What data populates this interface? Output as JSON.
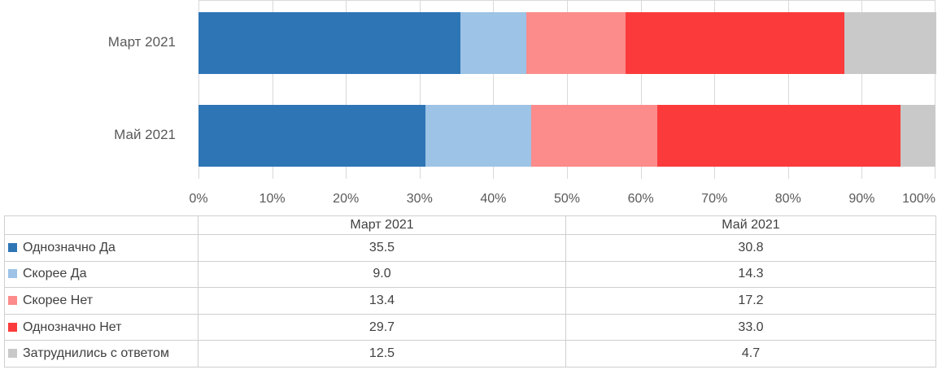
{
  "chart_data": {
    "type": "bar",
    "stacked": true,
    "orientation": "horizontal",
    "categories": [
      "Март 2021",
      "Май 2021"
    ],
    "series": [
      {
        "name": "Однозначно Да",
        "color": "#2E75B6",
        "values": [
          35.5,
          30.8
        ]
      },
      {
        "name": "Скорее Да",
        "color": "#9DC3E6",
        "values": [
          9.0,
          14.3
        ]
      },
      {
        "name": "Скорее Нет",
        "color": "#FC8B8B",
        "values": [
          13.4,
          17.2
        ]
      },
      {
        "name": "Однозначно Нет",
        "color": "#FB3B3B",
        "values": [
          29.7,
          33.0
        ]
      },
      {
        "name": "Затруднились с ответом",
        "color": "#C9C9C9",
        "values": [
          12.5,
          4.7
        ]
      }
    ],
    "x_axis": {
      "ticks": [
        "0%",
        "10%",
        "20%",
        "30%",
        "40%",
        "50%",
        "60%",
        "70%",
        "80%",
        "90%",
        "100%"
      ],
      "min": 0,
      "max": 100,
      "step": 10
    },
    "gridlines": true,
    "legend_position": "table-left-column",
    "value_format": "one-decimal",
    "colors": {
      "gridline": "#D9D9D9",
      "table_border": "#D0CECE",
      "axis_text": "#595959",
      "table_text": "#404040"
    }
  },
  "table": {
    "column_headers": [
      "Март 2021",
      "Май 2021"
    ],
    "rows": [
      {
        "label": "Однозначно Да",
        "values": [
          "35.5",
          "30.8"
        ]
      },
      {
        "label": "Скорее Да",
        "values": [
          "9.0",
          "14.3"
        ]
      },
      {
        "label": "Скорее Нет",
        "values": [
          "13.4",
          "17.2"
        ]
      },
      {
        "label": "Однозначно Нет",
        "values": [
          "29.7",
          "33.0"
        ]
      },
      {
        "label": "Затруднились с ответом",
        "values": [
          "12.5",
          "4.7"
        ]
      }
    ]
  }
}
